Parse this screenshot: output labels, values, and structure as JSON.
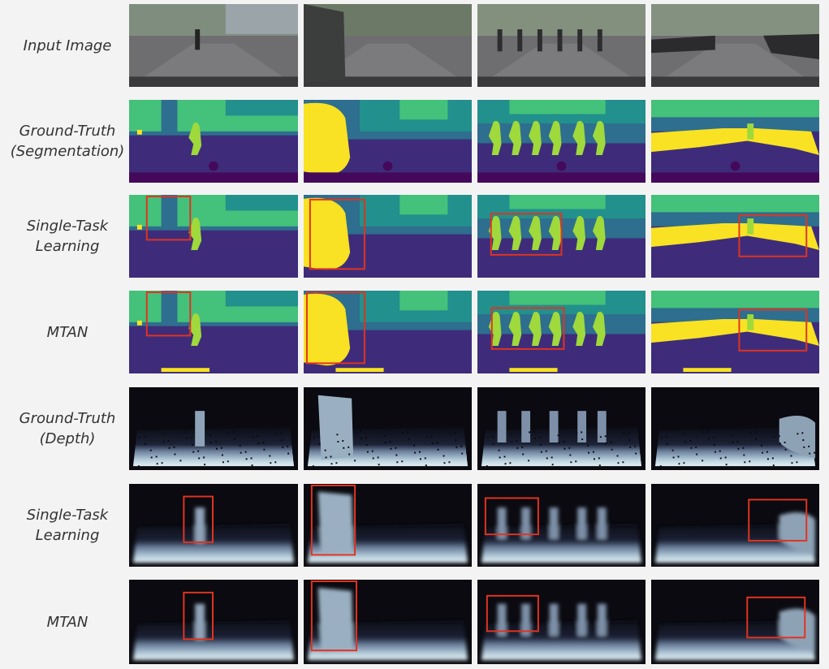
{
  "rows": [
    {
      "label": [
        "Input Image"
      ],
      "kind": "photo"
    },
    {
      "label": [
        "Ground-Truth",
        "(Segmentation)"
      ],
      "kind": "seg"
    },
    {
      "label": [
        "Single-Task",
        "Learning"
      ],
      "kind": "seg-stl"
    },
    {
      "label": [
        "MTAN"
      ],
      "kind": "seg-mtan"
    },
    {
      "label": [
        "Ground-Truth",
        "(Depth)"
      ],
      "kind": "depth"
    },
    {
      "label": [
        "Single-Task",
        "Learning"
      ],
      "kind": "depth-stl"
    },
    {
      "label": [
        "MTAN"
      ],
      "kind": "depth-mtan"
    }
  ],
  "colors": {
    "seg_road": "#3e2c7a",
    "seg_sky": "#2e6e8e",
    "seg_veg": "#44c17a",
    "seg_building": "#22908c",
    "seg_person": "#9fd93c",
    "seg_car": "#f8e223",
    "seg_void": "#44095a",
    "box": "#e2331f"
  }
}
